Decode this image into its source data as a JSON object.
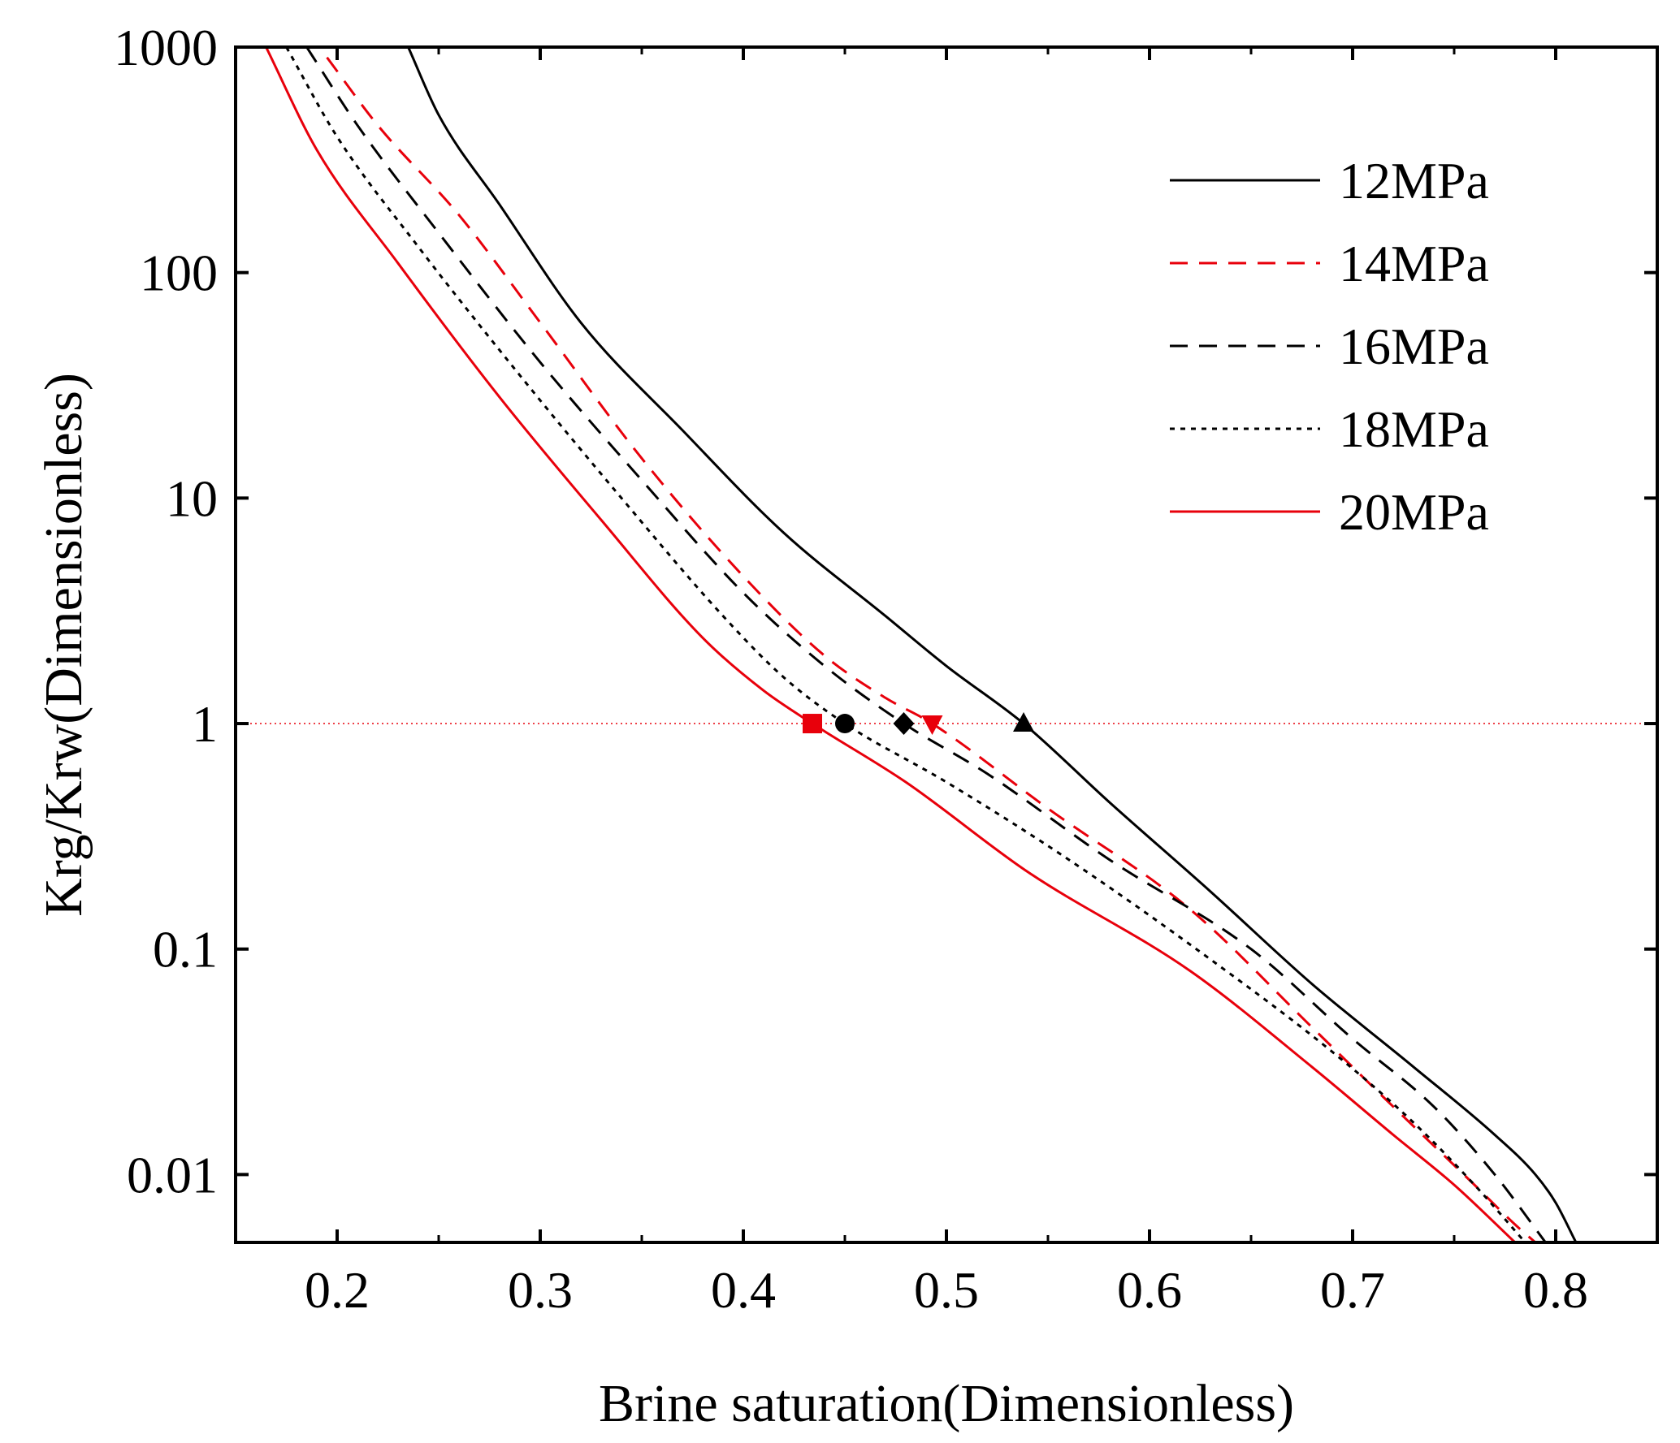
{
  "chart_data": {
    "type": "line",
    "title": "",
    "xlabel": "Brine saturation(Dimensionless)",
    "ylabel": "Krg/Krw(Dimensionless)",
    "xlim": [
      0.15,
      0.85
    ],
    "ylim": [
      0.005,
      1000
    ],
    "yscale": "log",
    "x_ticks": [
      0.2,
      0.3,
      0.4,
      0.5,
      0.6,
      0.7,
      0.8
    ],
    "x_tick_labels": [
      "0.2",
      "0.3",
      "0.4",
      "0.5",
      "0.6",
      "0.7",
      "0.8"
    ],
    "y_ticks": [
      0.01,
      0.1,
      1,
      10,
      100,
      1000
    ],
    "y_tick_labels": [
      "0.01",
      "0.1",
      "1",
      "10",
      "100",
      "1000"
    ],
    "legend_position": "top-right",
    "reference_line": {
      "y": 1,
      "color": "#e8000b",
      "style": "dotted"
    },
    "series": [
      {
        "name": "12MPa",
        "color": "#000000",
        "dash": "solid",
        "x": [
          0.235,
          0.25,
          0.28,
          0.32,
          0.37,
          0.42,
          0.47,
          0.5,
          0.538,
          0.58,
          0.63,
          0.68,
          0.73,
          0.77,
          0.79,
          0.8,
          0.81
        ],
        "y": [
          1000,
          500,
          200,
          60,
          20,
          7,
          3,
          1.8,
          1.0,
          0.45,
          0.18,
          0.07,
          0.03,
          0.015,
          0.01,
          0.0075,
          0.005
        ],
        "marker": {
          "shape": "triangle-up",
          "x": 0.538,
          "y": 1
        }
      },
      {
        "name": "14MPa",
        "color": "#e8000b",
        "dash": "dashed",
        "x": [
          0.195,
          0.22,
          0.26,
          0.3,
          0.35,
          0.4,
          0.44,
          0.47,
          0.493,
          0.55,
          0.62,
          0.68,
          0.72,
          0.76,
          0.78,
          0.79
        ],
        "y": [
          900,
          450,
          180,
          60,
          15,
          4.5,
          2.0,
          1.3,
          1.0,
          0.42,
          0.15,
          0.045,
          0.02,
          0.009,
          0.006,
          0.005
        ],
        "marker": {
          "shape": "triangle-down",
          "x": 0.493,
          "y": 1
        }
      },
      {
        "name": "16MPa",
        "color": "#000000",
        "dash": "dashed",
        "x": [
          0.185,
          0.21,
          0.25,
          0.3,
          0.35,
          0.4,
          0.44,
          0.479,
          0.52,
          0.58,
          0.65,
          0.7,
          0.74,
          0.77,
          0.795
        ],
        "y": [
          1000,
          450,
          150,
          40,
          12,
          3.8,
          1.8,
          1.0,
          0.6,
          0.25,
          0.1,
          0.04,
          0.02,
          0.01,
          0.005
        ],
        "marker": {
          "shape": "diamond",
          "x": 0.479,
          "y": 1
        }
      },
      {
        "name": "18MPa",
        "color": "#000000",
        "dash": "dotted",
        "x": [
          0.175,
          0.2,
          0.24,
          0.29,
          0.34,
          0.39,
          0.42,
          0.45,
          0.5,
          0.56,
          0.63,
          0.69,
          0.73,
          0.76,
          0.785
        ],
        "y": [
          1000,
          400,
          130,
          35,
          10,
          3.0,
          1.6,
          1.0,
          0.55,
          0.25,
          0.09,
          0.035,
          0.017,
          0.009,
          0.005
        ],
        "marker": {
          "shape": "circle",
          "x": 0.45,
          "y": 1
        }
      },
      {
        "name": "20MPa",
        "color": "#e8000b",
        "dash": "solid",
        "x": [
          0.165,
          0.19,
          0.23,
          0.28,
          0.33,
          0.38,
          0.41,
          0.434,
          0.48,
          0.54,
          0.62,
          0.68,
          0.72,
          0.75,
          0.78
        ],
        "y": [
          1000,
          350,
          110,
          28,
          8,
          2.4,
          1.4,
          1.0,
          0.55,
          0.22,
          0.08,
          0.03,
          0.015,
          0.009,
          0.005
        ],
        "marker": {
          "shape": "square",
          "x": 0.434,
          "y": 1
        }
      }
    ]
  }
}
